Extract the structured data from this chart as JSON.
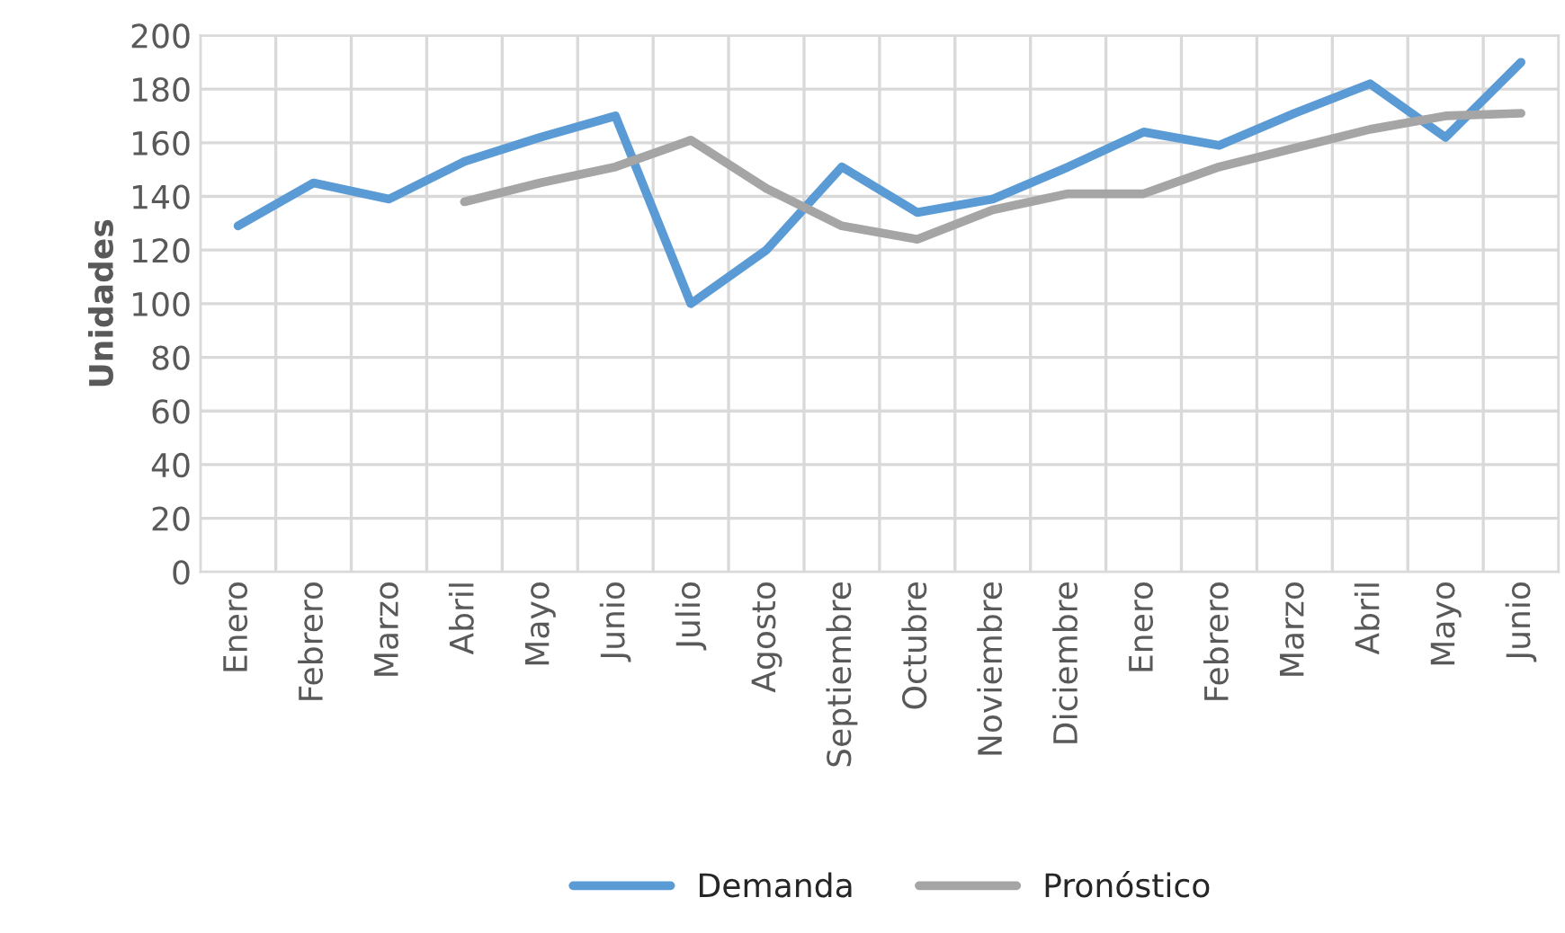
{
  "chart_data": {
    "type": "line",
    "ylabel": "Unidades",
    "categories": [
      "Enero",
      "Febrero",
      "Marzo",
      "Abril",
      "Mayo",
      "Junio",
      "Julio",
      "Agosto",
      "Septiembre",
      "Octubre",
      "Noviembre",
      "Diciembre",
      "Enero",
      "Febrero",
      "Marzo",
      "Abril",
      "Mayo",
      "Junio"
    ],
    "series": [
      {
        "name": "Demanda",
        "color": "#5b9bd5",
        "values": [
          129,
          145,
          139,
          153,
          162,
          170,
          100,
          120,
          151,
          134,
          139,
          151,
          164,
          159,
          171,
          182,
          162,
          190
        ]
      },
      {
        "name": "Pronóstico",
        "color": "#a5a5a5",
        "values": [
          null,
          null,
          null,
          138,
          145,
          151,
          161,
          143,
          129,
          124,
          135,
          141,
          141,
          151,
          158,
          165,
          170,
          171
        ]
      }
    ],
    "ylim": [
      0,
      200
    ],
    "yticks": [
      0,
      20,
      40,
      60,
      80,
      100,
      120,
      140,
      160,
      180,
      200
    ],
    "grid": true,
    "legend": "bottom",
    "marker": "none",
    "line_style": "solid"
  }
}
